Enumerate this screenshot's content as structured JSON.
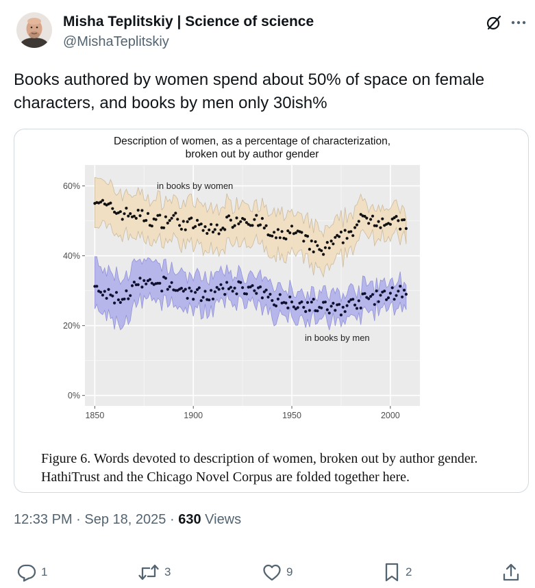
{
  "author": {
    "name": "Misha Teplitskiy | Science of science",
    "handle": "@MishaTeplitskiy"
  },
  "tweet": {
    "text_line1": "Books authored by women spend about 50% of space on female",
    "text_line2": "characters, and books by men only 30ish%"
  },
  "media": {
    "caption_line1": "Figure 6. Words devoted to description of women, broken out by author gender.",
    "caption_line2": "HathiTrust and the Chicago Novel Corpus are folded together here."
  },
  "chart_data": {
    "type": "scatter",
    "title": "Description of women, as a percentage of characterization,",
    "subtitle": "broken out by author gender",
    "xlim": [
      1845,
      2015
    ],
    "ylim": [
      -0.03,
      0.66
    ],
    "x_ticks": [
      1850,
      1900,
      1950,
      2000
    ],
    "y_ticks": [
      {
        "value": 0.6,
        "label": "60%"
      },
      {
        "value": 0.4,
        "label": "40%"
      },
      {
        "value": 0.2,
        "label": "20%"
      },
      {
        "value": 0.0,
        "label": "0%"
      }
    ],
    "grid": true,
    "series": [
      {
        "name": "in books by women",
        "band_color": "#f2dfc2",
        "band_edge": "#c9b89a",
        "x": [
          1850,
          1855,
          1860,
          1865,
          1870,
          1875,
          1880,
          1885,
          1890,
          1895,
          1900,
          1905,
          1910,
          1915,
          1920,
          1925,
          1930,
          1935,
          1940,
          1945,
          1950,
          1955,
          1960,
          1965,
          1970,
          1975,
          1980,
          1985,
          1990,
          1995,
          2000,
          2005
        ],
        "y": [
          0.57,
          0.54,
          0.53,
          0.52,
          0.52,
          0.51,
          0.5,
          0.5,
          0.51,
          0.49,
          0.49,
          0.48,
          0.47,
          0.49,
          0.5,
          0.51,
          0.5,
          0.49,
          0.45,
          0.46,
          0.47,
          0.45,
          0.43,
          0.41,
          0.43,
          0.45,
          0.47,
          0.5,
          0.51,
          0.5,
          0.5,
          0.49
        ],
        "band_upper": [
          0.64,
          0.6,
          0.59,
          0.58,
          0.58,
          0.57,
          0.56,
          0.56,
          0.56,
          0.55,
          0.55,
          0.54,
          0.53,
          0.55,
          0.55,
          0.56,
          0.55,
          0.54,
          0.51,
          0.52,
          0.52,
          0.51,
          0.49,
          0.47,
          0.48,
          0.5,
          0.53,
          0.55,
          0.55,
          0.54,
          0.54,
          0.53
        ],
        "band_lower": [
          0.5,
          0.48,
          0.47,
          0.46,
          0.46,
          0.45,
          0.44,
          0.44,
          0.45,
          0.43,
          0.43,
          0.42,
          0.41,
          0.43,
          0.44,
          0.45,
          0.44,
          0.43,
          0.39,
          0.4,
          0.41,
          0.39,
          0.37,
          0.35,
          0.37,
          0.39,
          0.42,
          0.45,
          0.46,
          0.46,
          0.46,
          0.45
        ]
      },
      {
        "name": "in books by men",
        "band_color": "#b4b4ec",
        "band_edge": "#8d8dd6",
        "x": [
          1850,
          1855,
          1860,
          1865,
          1870,
          1875,
          1880,
          1885,
          1890,
          1895,
          1900,
          1905,
          1910,
          1915,
          1920,
          1925,
          1930,
          1935,
          1940,
          1945,
          1950,
          1955,
          1960,
          1965,
          1970,
          1975,
          1980,
          1985,
          1990,
          1995,
          2000,
          2005
        ],
        "y": [
          0.3,
          0.29,
          0.28,
          0.28,
          0.31,
          0.32,
          0.31,
          0.32,
          0.31,
          0.3,
          0.29,
          0.29,
          0.29,
          0.3,
          0.31,
          0.31,
          0.3,
          0.29,
          0.28,
          0.27,
          0.27,
          0.26,
          0.26,
          0.25,
          0.25,
          0.25,
          0.26,
          0.27,
          0.28,
          0.28,
          0.29,
          0.3
        ],
        "band_upper": [
          0.38,
          0.35,
          0.35,
          0.34,
          0.37,
          0.38,
          0.37,
          0.37,
          0.36,
          0.35,
          0.34,
          0.34,
          0.34,
          0.35,
          0.35,
          0.35,
          0.34,
          0.33,
          0.32,
          0.31,
          0.31,
          0.3,
          0.3,
          0.29,
          0.29,
          0.29,
          0.3,
          0.31,
          0.32,
          0.32,
          0.32,
          0.33
        ],
        "band_lower": [
          0.24,
          0.23,
          0.21,
          0.2,
          0.25,
          0.27,
          0.26,
          0.27,
          0.26,
          0.25,
          0.24,
          0.24,
          0.25,
          0.26,
          0.27,
          0.27,
          0.26,
          0.25,
          0.23,
          0.23,
          0.23,
          0.22,
          0.22,
          0.21,
          0.21,
          0.21,
          0.22,
          0.23,
          0.24,
          0.24,
          0.25,
          0.26
        ]
      }
    ]
  },
  "meta": {
    "time": "12:33 PM",
    "separator": "·",
    "date": "Sep 18, 2025",
    "views_count": "630",
    "views_label": "Views"
  },
  "actions": {
    "replies": "1",
    "reposts": "3",
    "likes": "9",
    "bookmarks": "2"
  },
  "icons": {
    "grok": "grok-icon",
    "more": "more-icon",
    "reply": "reply-icon",
    "repost": "repost-icon",
    "like": "like-icon",
    "bookmark": "bookmark-icon",
    "share": "share-icon"
  }
}
